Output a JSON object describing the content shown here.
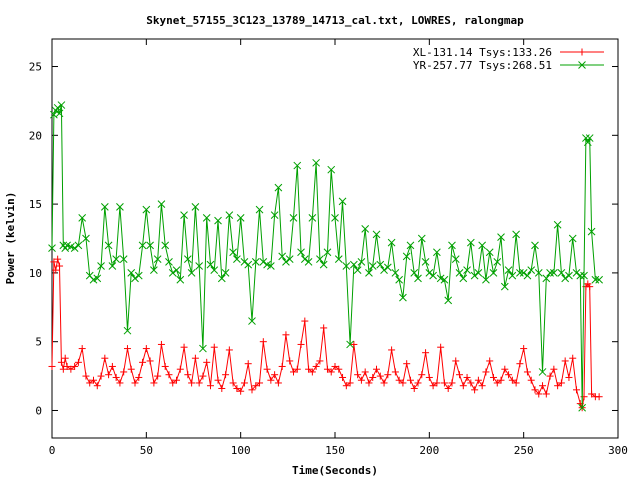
{
  "chart_data": {
    "type": "line",
    "title": "Skynet_57155_3C123_13789_14713_cal.txt, LOWRES, ralongmap",
    "xlabel": "Time(Seconds)",
    "ylabel": "Power (kelvin)",
    "xlim": [
      0,
      300
    ],
    "ylim": [
      -2,
      27
    ],
    "xticks": [
      0,
      50,
      100,
      150,
      200,
      250,
      300
    ],
    "yticks": [
      0,
      5,
      10,
      15,
      20,
      25
    ],
    "grid": false,
    "legend_position": "top-right",
    "series": [
      {
        "name": "XL-131.14 Tsys:133.26",
        "color": "#ff0000",
        "marker": "plus",
        "x": [
          0,
          1,
          2,
          3,
          4,
          5,
          6,
          7,
          8,
          10,
          12,
          14,
          16,
          18,
          20,
          22,
          24,
          26,
          28,
          30,
          32,
          34,
          36,
          38,
          40,
          42,
          44,
          46,
          48,
          50,
          52,
          54,
          56,
          58,
          60,
          62,
          64,
          66,
          68,
          70,
          72,
          74,
          76,
          78,
          80,
          82,
          84,
          86,
          88,
          90,
          92,
          94,
          96,
          98,
          100,
          102,
          104,
          106,
          108,
          110,
          112,
          114,
          116,
          118,
          120,
          122,
          124,
          126,
          128,
          130,
          132,
          134,
          136,
          138,
          140,
          142,
          144,
          146,
          148,
          150,
          152,
          154,
          156,
          158,
          160,
          162,
          164,
          166,
          168,
          170,
          172,
          174,
          176,
          178,
          180,
          182,
          184,
          186,
          188,
          190,
          192,
          194,
          196,
          198,
          200,
          202,
          204,
          206,
          208,
          210,
          212,
          214,
          216,
          218,
          220,
          222,
          224,
          226,
          228,
          230,
          232,
          234,
          236,
          238,
          240,
          242,
          244,
          246,
          248,
          250,
          252,
          254,
          256,
          258,
          260,
          262,
          264,
          266,
          268,
          270,
          272,
          274,
          276,
          278,
          280,
          281,
          282,
          283,
          284,
          285,
          286,
          288,
          290
        ],
        "y": [
          3.2,
          10.8,
          10.2,
          11.0,
          10.5,
          3.5,
          3.0,
          3.8,
          3.2,
          3.0,
          3.2,
          3.5,
          4.5,
          2.5,
          2.0,
          2.2,
          1.8,
          2.5,
          3.8,
          2.6,
          3.2,
          2.4,
          2.0,
          2.8,
          4.5,
          3.0,
          2.0,
          2.4,
          3.5,
          4.5,
          3.6,
          2.0,
          2.5,
          4.8,
          3.2,
          2.6,
          2.0,
          2.2,
          3.0,
          4.6,
          2.6,
          2.0,
          3.8,
          2.0,
          2.5,
          3.5,
          1.8,
          4.6,
          2.2,
          1.6,
          2.6,
          4.4,
          2.0,
          1.6,
          1.4,
          2.0,
          3.4,
          1.5,
          1.8,
          2.0,
          5.0,
          3.0,
          2.2,
          2.6,
          2.0,
          3.2,
          5.5,
          3.6,
          2.8,
          3.0,
          4.8,
          6.5,
          3.0,
          2.8,
          3.2,
          3.6,
          6.0,
          3.0,
          2.8,
          3.2,
          3.0,
          2.4,
          1.8,
          2.0,
          4.8,
          2.6,
          2.2,
          2.8,
          2.0,
          2.4,
          3.0,
          2.5,
          2.0,
          2.6,
          4.4,
          2.8,
          2.2,
          2.0,
          3.4,
          2.2,
          1.6,
          2.0,
          2.6,
          4.2,
          2.4,
          1.8,
          2.0,
          4.6,
          2.0,
          1.6,
          2.0,
          3.6,
          2.6,
          1.8,
          2.4,
          2.0,
          1.5,
          2.2,
          1.8,
          2.8,
          3.6,
          2.4,
          2.0,
          2.2,
          3.0,
          2.6,
          2.2,
          2.0,
          3.4,
          4.5,
          2.8,
          2.2,
          1.5,
          1.2,
          1.8,
          1.2,
          2.5,
          3.0,
          1.8,
          2.0,
          3.6,
          2.4,
          3.8,
          1.5,
          0.5,
          0.2,
          1.0,
          9.0,
          9.2,
          9.0,
          1.2,
          1.0,
          1.0
        ]
      },
      {
        "name": "YR-257.77 Tsys:268.51",
        "color": "#00a000",
        "marker": "x",
        "x": [
          0,
          1,
          2,
          3,
          4,
          5,
          6,
          7,
          8,
          10,
          12,
          14,
          16,
          18,
          20,
          22,
          24,
          26,
          28,
          30,
          32,
          34,
          36,
          38,
          40,
          42,
          44,
          46,
          48,
          50,
          52,
          54,
          56,
          58,
          60,
          62,
          64,
          66,
          68,
          70,
          72,
          74,
          76,
          78,
          80,
          82,
          84,
          86,
          88,
          90,
          92,
          94,
          96,
          98,
          100,
          102,
          104,
          106,
          108,
          110,
          112,
          114,
          116,
          118,
          120,
          122,
          124,
          126,
          128,
          130,
          132,
          134,
          136,
          138,
          140,
          142,
          144,
          146,
          148,
          150,
          152,
          154,
          156,
          158,
          160,
          162,
          164,
          166,
          168,
          170,
          172,
          174,
          176,
          178,
          180,
          182,
          184,
          186,
          188,
          190,
          192,
          194,
          196,
          198,
          200,
          202,
          204,
          206,
          208,
          210,
          212,
          214,
          216,
          218,
          220,
          222,
          224,
          226,
          228,
          230,
          232,
          234,
          236,
          238,
          240,
          242,
          244,
          246,
          248,
          250,
          252,
          254,
          256,
          258,
          260,
          262,
          264,
          266,
          268,
          270,
          272,
          274,
          276,
          278,
          280,
          281,
          282,
          283,
          284,
          285,
          286,
          288,
          290
        ],
        "y": [
          11.8,
          21.5,
          21.8,
          22.0,
          21.6,
          22.2,
          12.0,
          11.8,
          12.0,
          11.9,
          11.8,
          12.0,
          14.0,
          12.5,
          9.8,
          9.5,
          9.6,
          10.5,
          14.8,
          12.0,
          10.5,
          11.0,
          14.8,
          11.0,
          5.8,
          10.0,
          9.6,
          9.8,
          12.0,
          14.6,
          12.0,
          10.2,
          11.0,
          15.0,
          12.0,
          10.8,
          10.0,
          10.2,
          9.5,
          14.2,
          11.0,
          10.0,
          14.8,
          10.5,
          4.5,
          14.0,
          10.6,
          10.2,
          13.8,
          9.6,
          10.0,
          14.2,
          11.5,
          11.0,
          14.0,
          10.8,
          10.6,
          6.5,
          10.8,
          14.6,
          10.8,
          10.6,
          10.5,
          14.2,
          16.2,
          11.2,
          10.8,
          11.0,
          14.0,
          17.8,
          11.5,
          11.0,
          10.8,
          14.0,
          18.0,
          11.0,
          10.6,
          11.5,
          17.5,
          14.0,
          11.0,
          15.2,
          10.5,
          4.8,
          10.6,
          10.2,
          10.8,
          13.2,
          10.0,
          10.5,
          12.8,
          10.6,
          10.2,
          10.4,
          12.2,
          10.0,
          9.5,
          8.2,
          11.2,
          12.0,
          10.0,
          9.6,
          12.5,
          10.8,
          10.0,
          9.8,
          11.5,
          9.6,
          9.5,
          8.0,
          12.0,
          11.0,
          10.0,
          9.6,
          10.2,
          12.2,
          9.8,
          10.0,
          12.0,
          9.5,
          11.5,
          10.0,
          10.8,
          12.6,
          9.0,
          10.2,
          9.8,
          12.8,
          10.0,
          10.0,
          9.8,
          10.2,
          12.0,
          10.0,
          2.8,
          9.6,
          10.0,
          10.0,
          13.5,
          10.0,
          9.6,
          9.8,
          12.5,
          10.0,
          9.8,
          0.2,
          9.8,
          19.8,
          19.5,
          19.8,
          13.0,
          9.5,
          9.5
        ]
      }
    ]
  }
}
